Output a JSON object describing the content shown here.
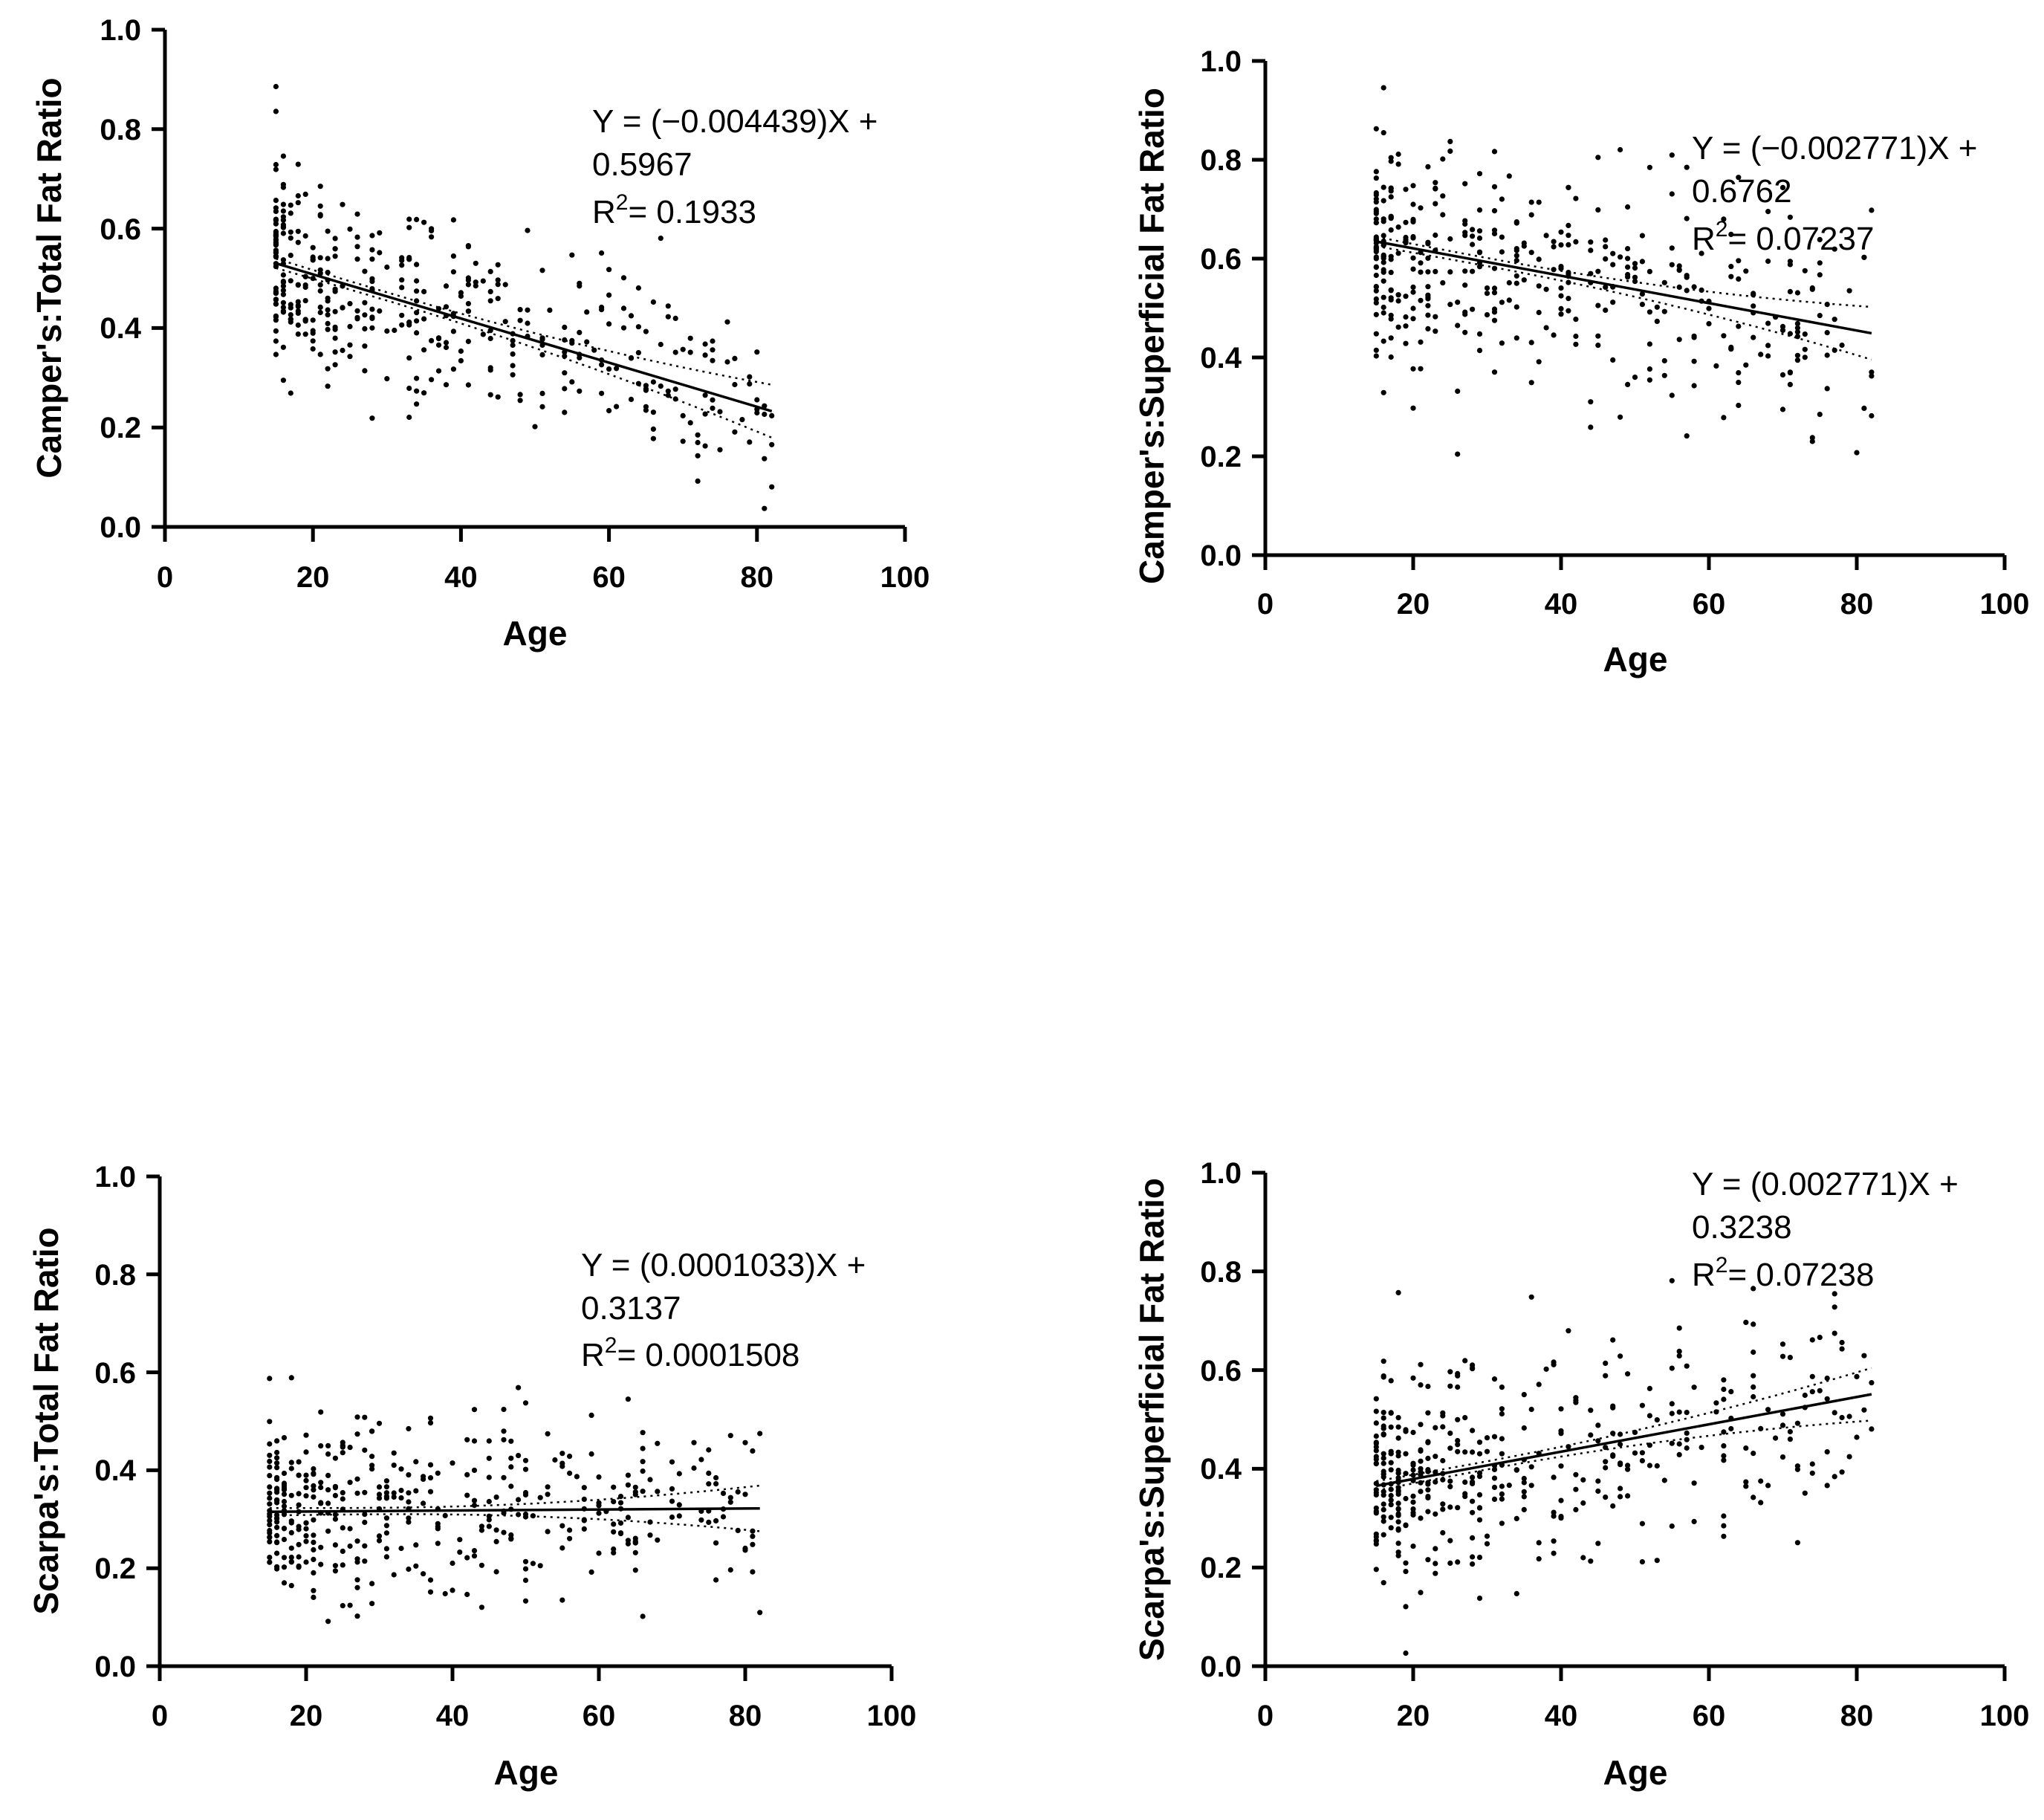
{
  "chart_data": [
    {
      "id": "p1",
      "type": "scatter",
      "xlabel": "Age",
      "ylabel": "Camper's:Total Fat Ratio",
      "xlim": [
        0,
        100
      ],
      "ylim": [
        0,
        1.0
      ],
      "xticks": [
        "0",
        "20",
        "40",
        "60",
        "80",
        "100"
      ],
      "yticks": [
        "0.0",
        "0.2",
        "0.4",
        "0.6",
        "0.8",
        "1.0"
      ],
      "equation": [
        "Y = (−0.004439)X +",
        "0.5967",
        "R",
        "2",
        "= 0.1933"
      ],
      "fit": {
        "slope": -0.004439,
        "intercept": 0.5967,
        "x_range": [
          15,
          82
        ],
        "ci_half_width_at_ends": [
          0.015,
          0.045
        ]
      },
      "points_summary": {
        "n": 420,
        "x_range": [
          15,
          82
        ],
        "y_spread": 0.1,
        "seed": 11
      }
    },
    {
      "id": "p2",
      "type": "scatter",
      "xlabel": "Age",
      "ylabel": "Camper's:Superficial Fat Ratio",
      "xlim": [
        0,
        100
      ],
      "ylim": [
        0,
        1.0
      ],
      "xticks": [
        "0",
        "20",
        "40",
        "60",
        "80",
        "100"
      ],
      "yticks": [
        "0.0",
        "0.2",
        "0.4",
        "0.6",
        "0.8",
        "1.0"
      ],
      "equation": [
        "Y = (−0.002771)X +",
        "0.6762",
        "R",
        "2",
        "= 0.07237"
      ],
      "fit": {
        "slope": -0.002771,
        "intercept": 0.6762,
        "x_range": [
          15,
          82
        ],
        "ci_half_width_at_ends": [
          0.015,
          0.045
        ]
      },
      "points_summary": {
        "n": 420,
        "x_range": [
          15,
          82
        ],
        "y_spread": 0.11,
        "seed": 23
      }
    },
    {
      "id": "p3",
      "type": "scatter",
      "xlabel": "Age",
      "ylabel": "Scarpa's:Total Fat Ratio",
      "xlim": [
        0,
        100
      ],
      "ylim": [
        0,
        1.0
      ],
      "xticks": [
        "0",
        "20",
        "40",
        "60",
        "80",
        "100"
      ],
      "yticks": [
        "0.0",
        "0.2",
        "0.4",
        "0.6",
        "0.8",
        "1.0"
      ],
      "equation": [
        "Y = (0.0001033)X +",
        "0.3137",
        "R",
        "2",
        "= 0.0001508"
      ],
      "fit": {
        "slope": 0.0001033,
        "intercept": 0.3137,
        "x_range": [
          15,
          82
        ],
        "ci_half_width_at_ends": [
          0.012,
          0.04
        ]
      },
      "points_summary": {
        "n": 420,
        "x_range": [
          15,
          82
        ],
        "y_spread": 0.09,
        "seed": 37
      }
    },
    {
      "id": "p4",
      "type": "scatter",
      "xlabel": "Age",
      "ylabel": "Scarpa's:Superficial Fat Ratio",
      "xlim": [
        0,
        100
      ],
      "ylim": [
        0,
        1.0
      ],
      "xticks": [
        "0",
        "20",
        "40",
        "60",
        "80",
        "100"
      ],
      "yticks": [
        "0.0",
        "0.2",
        "0.4",
        "0.6",
        "0.8",
        "1.0"
      ],
      "equation": [
        "Y = (0.002771)X +",
        "0.3238",
        "R",
        "2",
        "= 0.07238"
      ],
      "fit": {
        "slope": 0.002771,
        "intercept": 0.3238,
        "x_range": [
          15,
          82
        ],
        "ci_half_width_at_ends": [
          0.015,
          0.045
        ]
      },
      "points_summary": {
        "n": 420,
        "x_range": [
          15,
          82
        ],
        "y_spread": 0.11,
        "seed": 51
      }
    }
  ]
}
